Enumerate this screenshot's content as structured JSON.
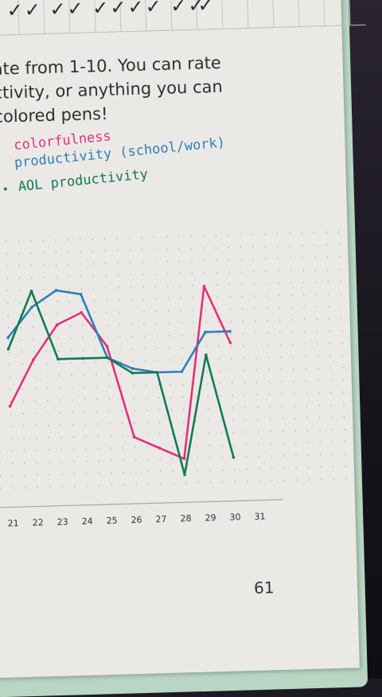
{
  "tracker": {
    "checks": "✓✓ ✓✓ ✓✓✓✓ ✓✓",
    "extra_check": "✓"
  },
  "instructions": {
    "line1": "ate from 1-10. You can rate",
    "line2": "ctivity, or anything you can",
    "line3": "colored pens!"
  },
  "legend": {
    "colorfulness": "colorfulness",
    "productivity": "productivity (school/work)",
    "aol": "AOL productivity"
  },
  "colors": {
    "colorfulness": "#e0327a",
    "productivity": "#2f7fb5",
    "aol": "#0f7a57",
    "paper": "#ebe9e6",
    "cover": "#b9d6c4"
  },
  "chart_data": {
    "type": "line",
    "x": [
      "21",
      "22",
      "23",
      "24",
      "25",
      "26",
      "27",
      "28",
      "29",
      "30",
      "31"
    ],
    "ylim": [
      0,
      10
    ],
    "series": [
      {
        "name": "colorfulness",
        "values": [
          3.5,
          5.5,
          7.0,
          7.5,
          6.0,
          2.0,
          1.5,
          1.0,
          8.5,
          6.0,
          null
        ]
      },
      {
        "name": "productivity (school/work)",
        "values": [
          6.5,
          7.8,
          8.5,
          8.3,
          5.5,
          5.0,
          4.8,
          4.8,
          6.5,
          6.5,
          null
        ]
      },
      {
        "name": "AOL productivity",
        "values": [
          6.0,
          8.5,
          5.5,
          5.5,
          5.5,
          4.8,
          4.8,
          0.3,
          5.5,
          1.0,
          null
        ]
      }
    ]
  },
  "page_number": "61"
}
